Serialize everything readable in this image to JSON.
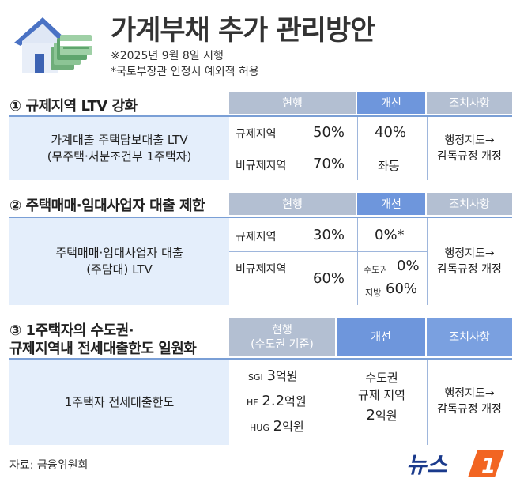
{
  "header": {
    "title": "가계부채 추가 관리방안",
    "note_date": "※2025년 9월 8일 시행",
    "note_exception": "*국토부장관 인정시 예외적 허용"
  },
  "section1": {
    "title": "① 규제지역 LTV 강화",
    "col_current": "현행",
    "col_improve": "개선",
    "col_action": "조치사항",
    "subject_line1": "가계대출 주택담보대출 LTV",
    "subject_line2": "(무주택·처분조건부 1주택자)",
    "rows": [
      {
        "region": "규제지역",
        "current": "50%",
        "improve": "40%"
      },
      {
        "region": "비규제지역",
        "current": "70%",
        "improve": "좌동"
      }
    ],
    "action_line1": "행정지도→",
    "action_line2": "감독규정 개정"
  },
  "section2": {
    "title": "② 주택매매·임대사업자 대출 제한",
    "col_current": "현행",
    "col_improve": "개선",
    "col_action": "조치사항",
    "subject_line1": "주택매매·임대사업자 대출",
    "subject_line2": "(주담대) LTV",
    "row1": {
      "region": "규제지역",
      "current": "30%",
      "improve": "0%*"
    },
    "row2": {
      "region": "비규제지역",
      "current": "60%",
      "improve_a_label": "수도권",
      "improve_a_value": "0%",
      "improve_b_label": "지방",
      "improve_b_value": "60%"
    },
    "action_line1": "행정지도→",
    "action_line2": "감독규정 개정"
  },
  "section3": {
    "title_line1": "③ 1주택자의 수도권·",
    "title_line2": "규제지역내 전세대출한도 일원화",
    "col_current_line1": "현행",
    "col_current_line2": "(수도권 기준)",
    "col_improve": "개선",
    "col_action": "조치사항",
    "subject": "1주택자 전세대출한도",
    "current_items": [
      {
        "org": "SGI",
        "amount": "3",
        "unit": "억원"
      },
      {
        "org": "HF",
        "amount": "2.2",
        "unit": "억원"
      },
      {
        "org": "HUG",
        "amount": "2",
        "unit": "억원"
      }
    ],
    "improve_line1": "수도권",
    "improve_line2": "규제 지역",
    "improve_amount": "2",
    "improve_unit": "억원",
    "action_line1": "행정지도→",
    "action_line2": "감독규정 개정"
  },
  "footer": {
    "source": "자료: 금융위원회",
    "logo_text": "뉴스",
    "logo_mark": "1"
  },
  "colors": {
    "header_gray": "#b3bfd2",
    "header_blue": "#6e96dc",
    "band_light_blue": "#e4eefb",
    "accent_blue": "#7a9fd6",
    "logo_orange": "#f26522"
  }
}
